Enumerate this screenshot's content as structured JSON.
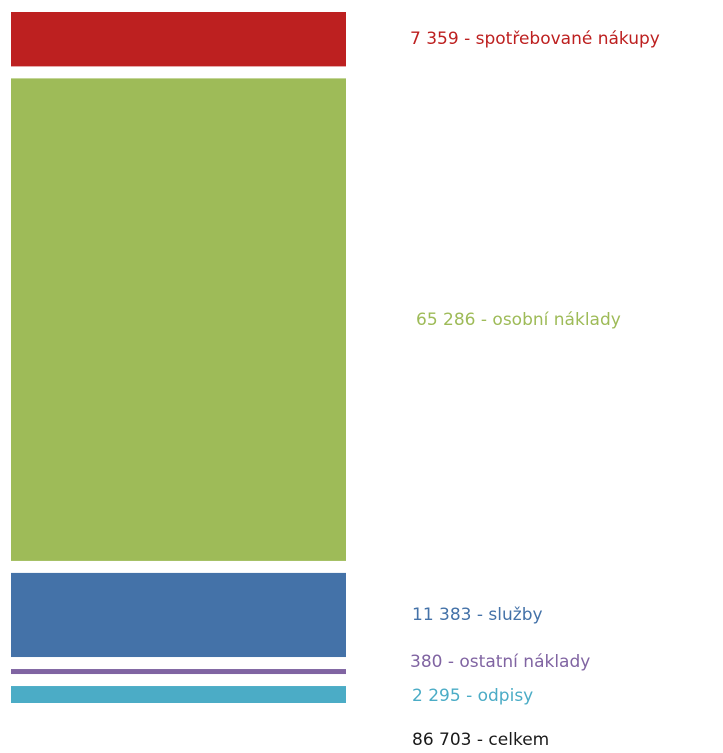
{
  "chart_data": {
    "type": "bar",
    "orientation": "stacked-vertical",
    "categories": [
      "spotřebované nákupy",
      "osobní náklady",
      "služby",
      "ostatní náklady",
      "odpisy"
    ],
    "values": [
      7359,
      65286,
      11383,
      380,
      2295
    ],
    "labels": [
      "7 359 - spotřebované nákupy",
      "65 286 - osobní náklady",
      "11 383 - služby",
      "380 - ostatní náklady",
      "2 295 - odpisy"
    ],
    "colors": [
      "#bd2020",
      "#9ebb58",
      "#4472a8",
      "#8064a2",
      "#4bacc6"
    ],
    "total": 86703,
    "total_label": "86 703 - celkem",
    "grid": false,
    "legend": "none"
  }
}
